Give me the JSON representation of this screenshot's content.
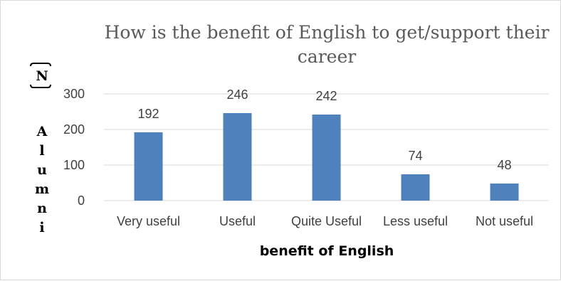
{
  "chart_data": {
    "type": "bar",
    "title_lines": [
      "How is the benefit of English to get/support their",
      "career"
    ],
    "categories": [
      "Very useful",
      "Useful",
      "Quite Useful",
      "Less useful",
      "Not useful"
    ],
    "values": [
      192,
      246,
      242,
      74,
      48
    ],
    "data_labels": [
      "192",
      "246",
      "242",
      "74",
      "48"
    ],
    "xlabel": "benefit of English",
    "ylabel": "Alumni",
    "ylabel_bracket": "N",
    "ylim": [
      0,
      300
    ],
    "yticks": [
      0,
      100,
      200,
      300
    ],
    "ytick_labels": [
      "0",
      "100",
      "200",
      "300"
    ],
    "grid": true,
    "legend": "none",
    "bar_color": "#4f81bd",
    "grid_color": "#d9d9d9"
  }
}
